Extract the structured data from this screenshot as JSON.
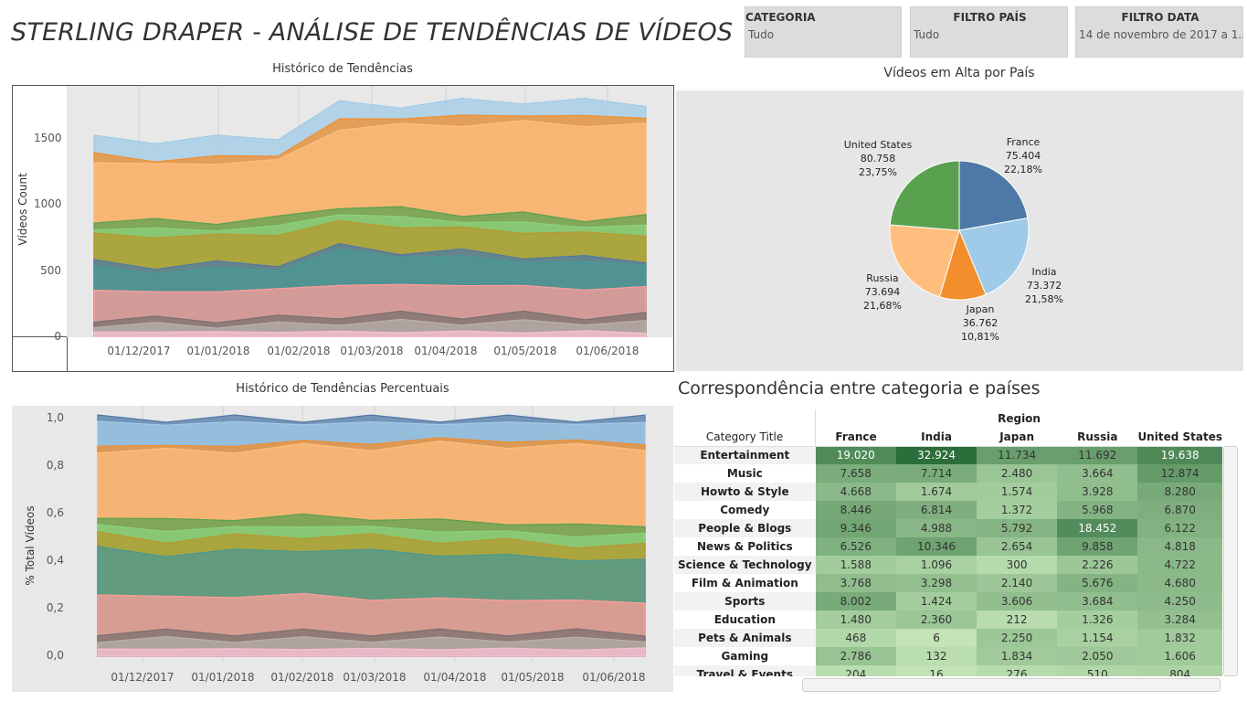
{
  "title": "STERLING DRAPER - ANÁLISE  DE TENDÊNCIAS DE VÍDEOS",
  "filters": [
    {
      "label": "CATEGORIA",
      "value": "Tudo"
    },
    {
      "label": "FILTRO PAÍS",
      "value": "Tudo"
    },
    {
      "label": "FILTRO DATA",
      "value": "14 de novembro de 2017 a 1.."
    }
  ],
  "colors": {
    "blue": "#4e79a7",
    "light_blue": "#a0cbe8",
    "orange": "#f28e2b",
    "light_orange": "#ffbe7d",
    "green": "#59a14f",
    "light_green": "#8cd17d",
    "olive": "#b6992d",
    "teal": "#499894",
    "red": "#e15759",
    "light_red": "#ff9d9a",
    "gray": "#79706e",
    "light_gray": "#bab0ac",
    "pink": "#d37295",
    "light_pink": "#fabfd2"
  },
  "chart_data": [
    {
      "type": "area",
      "title": "Histórico de Tendências",
      "ylabel": "Vídeos Count",
      "xlabel": "",
      "ylim": [
        0,
        1900
      ],
      "yticks": [
        "1500",
        "1000",
        "500",
        "0"
      ],
      "xticks": [
        "01/12/2017",
        "01/01/2018",
        "01/02/2018",
        "01/03/2018",
        "01/04/2018",
        "01/05/2018",
        "01/06/2018"
      ],
      "x": [
        "14/11/2017",
        "01/12/2017",
        "01/01/2018",
        "01/02/2018",
        "08/02/2018",
        "01/03/2018",
        "01/04/2018",
        "01/05/2018",
        "01/06/2018",
        "14/06/2018"
      ],
      "stack_colors": [
        "#fabfd2",
        "#bab0ac",
        "#79706e",
        "#ff9d9a",
        "#499894",
        "#4e79a7",
        "#b6992d",
        "#8cd17d",
        "#59a14f",
        "#ffbe7d",
        "#f28e2b",
        "#a0cbe8"
      ],
      "stack_tops": [
        [
          40,
          40,
          40,
          40,
          40,
          40,
          40,
          40,
          40,
          40
        ],
        [
          95,
          90,
          90,
          95,
          110,
          115,
          110,
          115,
          110,
          110
        ],
        [
          140,
          135,
          135,
          140,
          165,
          170,
          165,
          170,
          160,
          160
        ],
        [
          360,
          340,
          350,
          360,
          400,
          390,
          400,
          380,
          370,
          370
        ],
        [
          520,
          500,
          510,
          520,
          650,
          620,
          600,
          580,
          560,
          560
        ],
        [
          560,
          540,
          550,
          560,
          680,
          650,
          640,
          620,
          590,
          590
        ],
        [
          780,
          760,
          770,
          780,
          870,
          840,
          820,
          800,
          780,
          780
        ],
        [
          830,
          810,
          820,
          830,
          940,
          900,
          880,
          860,
          840,
          840
        ],
        [
          890,
          870,
          880,
          890,
          1000,
          960,
          940,
          920,
          900,
          900
        ],
        [
          1330,
          1300,
          1320,
          1330,
          1580,
          1600,
          1610,
          1620,
          1610,
          1600
        ],
        [
          1380,
          1340,
          1360,
          1380,
          1640,
          1660,
          1670,
          1680,
          1670,
          1660
        ],
        [
          1500,
          1490,
          1500,
          1520,
          1760,
          1760,
          1780,
          1790,
          1780,
          1770
        ]
      ]
    },
    {
      "type": "area",
      "title": "Histórico de Tendências Percentuais",
      "ylabel": "% Total Vídeos",
      "xlabel": "",
      "ylim": [
        0,
        1
      ],
      "yticks": [
        "1,0",
        "0,8",
        "0,6",
        "0,4",
        "0,2",
        "0,0"
      ],
      "xticks": [
        "01/12/2017",
        "01/01/2018",
        "01/02/2018",
        "01/03/2018",
        "01/04/2018",
        "01/05/2018",
        "01/06/2018"
      ],
      "x": [
        "14/11/2017",
        "01/12/2017",
        "01/01/2018",
        "01/02/2018",
        "01/03/2018",
        "01/04/2018",
        "01/05/2018",
        "01/06/2018",
        "14/06/2018"
      ],
      "stack_colors": [
        "#fabfd2",
        "#bab0ac",
        "#79706e",
        "#ff9d9a",
        "#499894",
        "#b6992d",
        "#8cd17d",
        "#59a14f",
        "#ffbe7d",
        "#f28e2b",
        "#a0cbe8",
        "#4e79a7"
      ],
      "stack_tops": [
        [
          0.03,
          0.03,
          0.03,
          0.03,
          0.03,
          0.03,
          0.03,
          0.03,
          0.03
        ],
        [
          0.07,
          0.07,
          0.07,
          0.07,
          0.07,
          0.07,
          0.07,
          0.07,
          0.07
        ],
        [
          0.1,
          0.1,
          0.1,
          0.1,
          0.1,
          0.1,
          0.1,
          0.1,
          0.1
        ],
        [
          0.26,
          0.25,
          0.25,
          0.26,
          0.24,
          0.24,
          0.24,
          0.23,
          0.23
        ],
        [
          0.45,
          0.43,
          0.44,
          0.45,
          0.44,
          0.43,
          0.42,
          0.41,
          0.4
        ],
        [
          0.51,
          0.49,
          0.5,
          0.51,
          0.5,
          0.49,
          0.48,
          0.47,
          0.46
        ],
        [
          0.55,
          0.53,
          0.54,
          0.55,
          0.54,
          0.53,
          0.52,
          0.51,
          0.51
        ],
        [
          0.59,
          0.57,
          0.58,
          0.59,
          0.58,
          0.57,
          0.56,
          0.55,
          0.55
        ],
        [
          0.87,
          0.86,
          0.87,
          0.88,
          0.88,
          0.89,
          0.89,
          0.88,
          0.88
        ],
        [
          0.89,
          0.88,
          0.89,
          0.9,
          0.9,
          0.91,
          0.91,
          0.9,
          0.9
        ],
        [
          0.98,
          0.98,
          0.98,
          0.98,
          0.98,
          0.98,
          0.98,
          0.98,
          0.98
        ],
        [
          1.0,
          1.0,
          1.0,
          1.0,
          1.0,
          1.0,
          1.0,
          1.0,
          1.0
        ]
      ]
    },
    {
      "type": "pie",
      "title": "Vídeos em Alta por País",
      "slices": [
        {
          "name": "France",
          "value": 75404,
          "value_label": "75.404",
          "pct": "22,18%",
          "color": "#4e79a7"
        },
        {
          "name": "India",
          "value": 73372,
          "value_label": "73.372",
          "pct": "21,58%",
          "color": "#a0cbe8"
        },
        {
          "name": "Japan",
          "value": 36762,
          "value_label": "36.762",
          "pct": "10,81%",
          "color": "#f28e2b"
        },
        {
          "name": "Russia",
          "value": 73694,
          "value_label": "73.694",
          "pct": "21,68%",
          "color": "#ffbe7d"
        },
        {
          "name": "United States",
          "value": 80758,
          "value_label": "80.758",
          "pct": "23,75%",
          "color": "#59a14f"
        }
      ]
    },
    {
      "type": "heatmap",
      "title": "Correspondência entre categoria e países",
      "row_header": "Category Title",
      "column_group": "Region",
      "columns": [
        "France",
        "India",
        "Japan",
        "Russia",
        "United States"
      ],
      "rows": [
        {
          "category": "Entertainment",
          "values": [
            "19.020",
            "32.924",
            "11.734",
            "11.692",
            "19.638"
          ],
          "raw": [
            19020,
            32924,
            11734,
            11692,
            19638
          ]
        },
        {
          "category": "Music",
          "values": [
            "7.658",
            "7.714",
            "2.480",
            "3.664",
            "12.874"
          ],
          "raw": [
            7658,
            7714,
            2480,
            3664,
            12874
          ]
        },
        {
          "category": "Howto & Style",
          "values": [
            "4.668",
            "1.674",
            "1.574",
            "3.928",
            "8.280"
          ],
          "raw": [
            4668,
            1674,
            1574,
            3928,
            8280
          ]
        },
        {
          "category": "Comedy",
          "values": [
            "8.446",
            "6.814",
            "1.372",
            "5.968",
            "6.870"
          ],
          "raw": [
            8446,
            6814,
            1372,
            5968,
            6870
          ]
        },
        {
          "category": "People & Blogs",
          "values": [
            "9.346",
            "4.988",
            "5.792",
            "18.452",
            "6.122"
          ],
          "raw": [
            9346,
            4988,
            5792,
            18452,
            6122
          ]
        },
        {
          "category": "News & Politics",
          "values": [
            "6.526",
            "10.346",
            "2.654",
            "9.858",
            "4.818"
          ],
          "raw": [
            6526,
            10346,
            2654,
            9858,
            4818
          ]
        },
        {
          "category": "Science & Technology",
          "values": [
            "1.588",
            "1.096",
            "300",
            "2.226",
            "4.722"
          ],
          "raw": [
            1588,
            1096,
            300,
            2226,
            4722
          ]
        },
        {
          "category": "Film & Animation",
          "values": [
            "3.768",
            "3.298",
            "2.140",
            "5.676",
            "4.680"
          ],
          "raw": [
            3768,
            3298,
            2140,
            5676,
            4680
          ]
        },
        {
          "category": "Sports",
          "values": [
            "8.002",
            "1.424",
            "3.606",
            "3.684",
            "4.250"
          ],
          "raw": [
            8002,
            1424,
            3606,
            3684,
            4250
          ]
        },
        {
          "category": "Education",
          "values": [
            "1.480",
            "2.360",
            "212",
            "1.326",
            "3.284"
          ],
          "raw": [
            1480,
            2360,
            212,
            1326,
            3284
          ]
        },
        {
          "category": "Pets & Animals",
          "values": [
            "468",
            "6",
            "2.250",
            "1.154",
            "1.832"
          ],
          "raw": [
            468,
            6,
            2250,
            1154,
            1832
          ]
        },
        {
          "category": "Gaming",
          "values": [
            "2.786",
            "132",
            "1.834",
            "2.050",
            "1.606"
          ],
          "raw": [
            2786,
            132,
            1834,
            2050,
            1606
          ]
        },
        {
          "category": "Travel & Events",
          "values": [
            "204",
            "16",
            "276",
            "510",
            "804"
          ],
          "raw": [
            204,
            16,
            276,
            510,
            804
          ]
        }
      ]
    }
  ]
}
